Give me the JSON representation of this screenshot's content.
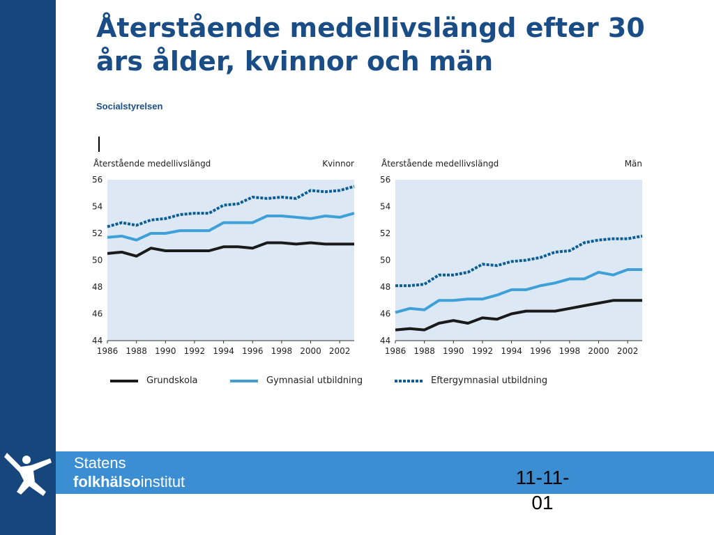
{
  "slide": {
    "title": "Återstående medellivslängd efter 30 års ålder, kvinnor och män",
    "source": "Socialstyrelsen",
    "logo_line1": "Statens",
    "logo_line2_bold": "folkhälso",
    "logo_line2_rest": "institut",
    "date": "11-11-01"
  },
  "colors": {
    "sidebar": "#17467d",
    "footer_band": "#3b8ed2",
    "title": "#1a4d86",
    "plot_bg": "#dce8f4",
    "grundskola": "#1a1a1a",
    "gymnasial": "#3fa0d8",
    "eftergymnasial": "#0b5d94"
  },
  "legend": [
    {
      "label": "Grundskola",
      "color": "#1a1a1a",
      "style": "solid"
    },
    {
      "label": "Gymnasial utbildning",
      "color": "#3fa0d8",
      "style": "solid"
    },
    {
      "label": "Eftergymnasial utbildning",
      "color": "#0b5d94",
      "style": "dotted"
    }
  ],
  "chart_data": [
    {
      "type": "line",
      "title": "Kvinnor",
      "ylabel": "Återstående medellivslängd",
      "xlabel": "",
      "ylim": [
        44,
        56
      ],
      "yticks": [
        44,
        46,
        48,
        50,
        52,
        54,
        56
      ],
      "xticks": [
        1986,
        1988,
        1990,
        1992,
        1994,
        1996,
        1998,
        2000,
        2002
      ],
      "x": [
        1986,
        1987,
        1988,
        1989,
        1990,
        1991,
        1992,
        1993,
        1994,
        1995,
        1996,
        1997,
        1998,
        1999,
        2000,
        2001,
        2002,
        2003
      ],
      "grid": false,
      "series": [
        {
          "name": "Grundskola",
          "values": [
            50.5,
            50.6,
            50.3,
            50.9,
            50.7,
            50.7,
            50.7,
            50.7,
            51.0,
            51.0,
            50.9,
            51.3,
            51.3,
            51.2,
            51.3,
            51.2,
            51.2,
            51.2
          ]
        },
        {
          "name": "Gymnasial utbildning",
          "values": [
            51.7,
            51.8,
            51.5,
            52.0,
            52.0,
            52.2,
            52.2,
            52.2,
            52.8,
            52.8,
            52.8,
            53.3,
            53.3,
            53.2,
            53.1,
            53.3,
            53.2,
            53.5
          ]
        },
        {
          "name": "Eftergymnasial utbildning",
          "values": [
            52.5,
            52.8,
            52.6,
            53.0,
            53.1,
            53.4,
            53.5,
            53.5,
            54.1,
            54.2,
            54.7,
            54.6,
            54.7,
            54.6,
            55.2,
            55.1,
            55.2,
            55.5
          ]
        }
      ]
    },
    {
      "type": "line",
      "title": "Män",
      "ylabel": "Återstående medellivslängd",
      "xlabel": "",
      "ylim": [
        44,
        56
      ],
      "yticks": [
        44,
        46,
        48,
        50,
        52,
        54,
        56
      ],
      "xticks": [
        1986,
        1988,
        1990,
        1992,
        1994,
        1996,
        1998,
        2000,
        2002
      ],
      "x": [
        1986,
        1987,
        1988,
        1989,
        1990,
        1991,
        1992,
        1993,
        1994,
        1995,
        1996,
        1997,
        1998,
        1999,
        2000,
        2001,
        2002,
        2003
      ],
      "grid": false,
      "series": [
        {
          "name": "Grundskola",
          "values": [
            44.8,
            44.9,
            44.8,
            45.3,
            45.5,
            45.3,
            45.7,
            45.6,
            46.0,
            46.2,
            46.2,
            46.2,
            46.4,
            46.6,
            46.8,
            47.0,
            47.0,
            47.0
          ]
        },
        {
          "name": "Gymnasial utbildning",
          "values": [
            46.1,
            46.4,
            46.3,
            47.0,
            47.0,
            47.1,
            47.1,
            47.4,
            47.8,
            47.8,
            48.1,
            48.3,
            48.6,
            48.6,
            49.1,
            48.9,
            49.3,
            49.3
          ]
        },
        {
          "name": "Eftergymnasial utbildning",
          "values": [
            48.1,
            48.1,
            48.2,
            48.9,
            48.9,
            49.1,
            49.7,
            49.6,
            49.9,
            50.0,
            50.2,
            50.6,
            50.7,
            51.3,
            51.5,
            51.6,
            51.6,
            51.8
          ]
        }
      ]
    }
  ]
}
